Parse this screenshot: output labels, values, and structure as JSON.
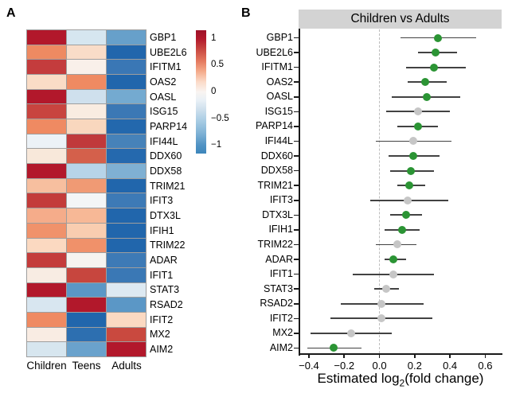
{
  "panels": {
    "a_label": "A",
    "b_label": "B"
  },
  "colors": {
    "significant_dot": "#2b9434",
    "nonsignificant_dot": "#c6c6c6",
    "ci_line": "#424242",
    "axis": "#1a1a1a",
    "zero_line": "#bdbdbd",
    "strip_bg": "#d3d3d3",
    "cell_border": "#9e9e9e"
  },
  "chart_data": [
    {
      "type": "heatmap",
      "panel": "A",
      "columns": [
        "Children",
        "Teens",
        "Adults"
      ],
      "genes": [
        "GBP1",
        "UBE2L6",
        "IFITM1",
        "OAS2",
        "OASL",
        "ISG15",
        "PARP14",
        "IFI44L",
        "DDX60",
        "DDX58",
        "TRIM21",
        "IFIT3",
        "DTX3L",
        "IFIH1",
        "TRIM22",
        "ADAR",
        "IFIT1",
        "STAT3",
        "RSAD2",
        "IFIT2",
        "MX2",
        "AIM2"
      ],
      "values": [
        [
          1.1,
          -0.2,
          -0.6
        ],
        [
          0.55,
          0.22,
          -1.0
        ],
        [
          0.9,
          0.07,
          -0.82
        ],
        [
          0.22,
          0.55,
          -1.0
        ],
        [
          1.1,
          -0.25,
          -0.55
        ],
        [
          0.88,
          0.1,
          -0.82
        ],
        [
          0.55,
          0.24,
          -0.98
        ],
        [
          -0.08,
          0.92,
          -0.78
        ],
        [
          0.12,
          0.75,
          -0.98
        ],
        [
          1.1,
          -0.35,
          -0.52
        ],
        [
          0.33,
          0.48,
          -1.0
        ],
        [
          0.9,
          -0.02,
          -0.8
        ],
        [
          0.42,
          0.38,
          -1.0
        ],
        [
          0.52,
          0.28,
          -1.0
        ],
        [
          0.23,
          0.52,
          -1.0
        ],
        [
          0.9,
          0.02,
          -0.8
        ],
        [
          0.1,
          0.85,
          -0.82
        ],
        [
          1.1,
          -0.68,
          -0.15
        ],
        [
          -0.2,
          1.1,
          -0.68
        ],
        [
          0.55,
          -1.0,
          0.23
        ],
        [
          0.1,
          -0.92,
          0.8
        ],
        [
          -0.2,
          -0.6,
          1.1
        ]
      ],
      "cell_colors": [
        [
          "#b2182b",
          "#d6e6f0",
          "#67a0ca"
        ],
        [
          "#ee8a62",
          "#f9dcc8",
          "#2166ac"
        ],
        [
          "#c43c3d",
          "#f9f0ea",
          "#3a77b5"
        ],
        [
          "#fadcc6",
          "#ef8a62",
          "#2166ac"
        ],
        [
          "#b2182b",
          "#cfe0ed",
          "#74aad0"
        ],
        [
          "#c8443f",
          "#f9ece1",
          "#3b78b5"
        ],
        [
          "#ef8a62",
          "#f9d7be",
          "#2368ad"
        ],
        [
          "#ecf2f7",
          "#c0393b",
          "#4682b9"
        ],
        [
          "#f8e8da",
          "#d4604b",
          "#2569ae"
        ],
        [
          "#b2182b",
          "#b7d4e8",
          "#7fb0d3"
        ],
        [
          "#f7bf9f",
          "#f09a74",
          "#2166ac"
        ],
        [
          "#c33c3a",
          "#f3f5f6",
          "#3d7ab6"
        ],
        [
          "#f5ac8a",
          "#f7b896",
          "#2166ac"
        ],
        [
          "#f0926b",
          "#f9cdb0",
          "#2166ac"
        ],
        [
          "#fbd9c1",
          "#f0916a",
          "#2166ac"
        ],
        [
          "#c43c3b",
          "#f6f4f0",
          "#3d7ab6"
        ],
        [
          "#f8ece3",
          "#c7463e",
          "#3a78b5"
        ],
        [
          "#b2182b",
          "#5b97c6",
          "#dde9f2"
        ],
        [
          "#d8e6f0",
          "#b2182b",
          "#5b97c6"
        ],
        [
          "#ef8a62",
          "#2166ac",
          "#fbd9c2"
        ],
        [
          "#f9ece3",
          "#2d6fb0",
          "#c9493f"
        ],
        [
          "#d7e6ef",
          "#6aa2cc",
          "#b2182b"
        ]
      ],
      "legend": {
        "range": [
          -1.15,
          1.15
        ],
        "ticks": [
          {
            "label": "1",
            "value": 1
          },
          {
            "label": "0.5",
            "value": 0.5
          },
          {
            "label": "0",
            "value": 0
          },
          {
            "label": "−0.5",
            "value": -0.5
          },
          {
            "label": "−1",
            "value": -1
          }
        ]
      }
    },
    {
      "type": "scatter",
      "panel": "B",
      "title": "Children vs Adults",
      "xlabel": "Estimated log2(fold change)",
      "xlabel_parts": {
        "prefix": "Estimated log",
        "sub": "2",
        "suffix": "(fold change)"
      },
      "xlim": [
        -0.454,
        0.693
      ],
      "zero_line": 0,
      "grid": false,
      "x_ticks": [
        {
          "label": "−0.4",
          "value": -0.4
        },
        {
          "label": "−0.2",
          "value": -0.2
        },
        {
          "label": "0.0",
          "value": 0.0
        },
        {
          "label": "0.2",
          "value": 0.2
        },
        {
          "label": "0.4",
          "value": 0.4
        },
        {
          "label": "0.6",
          "value": 0.6
        }
      ],
      "rows": [
        {
          "gene": "GBP1",
          "estimate": 0.33,
          "ci_low": 0.12,
          "ci_high": 0.55,
          "significant": true
        },
        {
          "gene": "UBE2L6",
          "estimate": 0.32,
          "ci_low": 0.22,
          "ci_high": 0.44,
          "significant": true
        },
        {
          "gene": "IFITM1",
          "estimate": 0.31,
          "ci_low": 0.15,
          "ci_high": 0.49,
          "significant": true
        },
        {
          "gene": "OAS2",
          "estimate": 0.26,
          "ci_low": 0.16,
          "ci_high": 0.38,
          "significant": true
        },
        {
          "gene": "OASL",
          "estimate": 0.27,
          "ci_low": 0.07,
          "ci_high": 0.46,
          "significant": true
        },
        {
          "gene": "ISG15",
          "estimate": 0.22,
          "ci_low": 0.04,
          "ci_high": 0.4,
          "significant": false
        },
        {
          "gene": "PARP14",
          "estimate": 0.22,
          "ci_low": 0.1,
          "ci_high": 0.33,
          "significant": true
        },
        {
          "gene": "IFI44L",
          "estimate": 0.19,
          "ci_low": -0.02,
          "ci_high": 0.41,
          "significant": false
        },
        {
          "gene": "DDX60",
          "estimate": 0.19,
          "ci_low": 0.05,
          "ci_high": 0.34,
          "significant": true
        },
        {
          "gene": "DDX58",
          "estimate": 0.18,
          "ci_low": 0.06,
          "ci_high": 0.31,
          "significant": true
        },
        {
          "gene": "TRIM21",
          "estimate": 0.17,
          "ci_low": 0.1,
          "ci_high": 0.26,
          "significant": true
        },
        {
          "gene": "IFIT3",
          "estimate": 0.16,
          "ci_low": -0.05,
          "ci_high": 0.39,
          "significant": false
        },
        {
          "gene": "DTX3L",
          "estimate": 0.15,
          "ci_low": 0.06,
          "ci_high": 0.24,
          "significant": true
        },
        {
          "gene": "IFIH1",
          "estimate": 0.13,
          "ci_low": 0.03,
          "ci_high": 0.23,
          "significant": true
        },
        {
          "gene": "TRIM22",
          "estimate": 0.1,
          "ci_low": -0.02,
          "ci_high": 0.21,
          "significant": false
        },
        {
          "gene": "ADAR",
          "estimate": 0.08,
          "ci_low": 0.03,
          "ci_high": 0.15,
          "significant": true
        },
        {
          "gene": "IFIT1",
          "estimate": 0.08,
          "ci_low": -0.15,
          "ci_high": 0.31,
          "significant": false
        },
        {
          "gene": "STAT3",
          "estimate": 0.04,
          "ci_low": -0.03,
          "ci_high": 0.11,
          "significant": false
        },
        {
          "gene": "RSAD2",
          "estimate": 0.01,
          "ci_low": -0.22,
          "ci_high": 0.25,
          "significant": false
        },
        {
          "gene": "IFIT2",
          "estimate": 0.01,
          "ci_low": -0.28,
          "ci_high": 0.3,
          "significant": false
        },
        {
          "gene": "MX2",
          "estimate": -0.16,
          "ci_low": -0.39,
          "ci_high": 0.07,
          "significant": false
        },
        {
          "gene": "AIM2",
          "estimate": -0.26,
          "ci_low": -0.41,
          "ci_high": -0.1,
          "significant": true
        }
      ]
    }
  ]
}
